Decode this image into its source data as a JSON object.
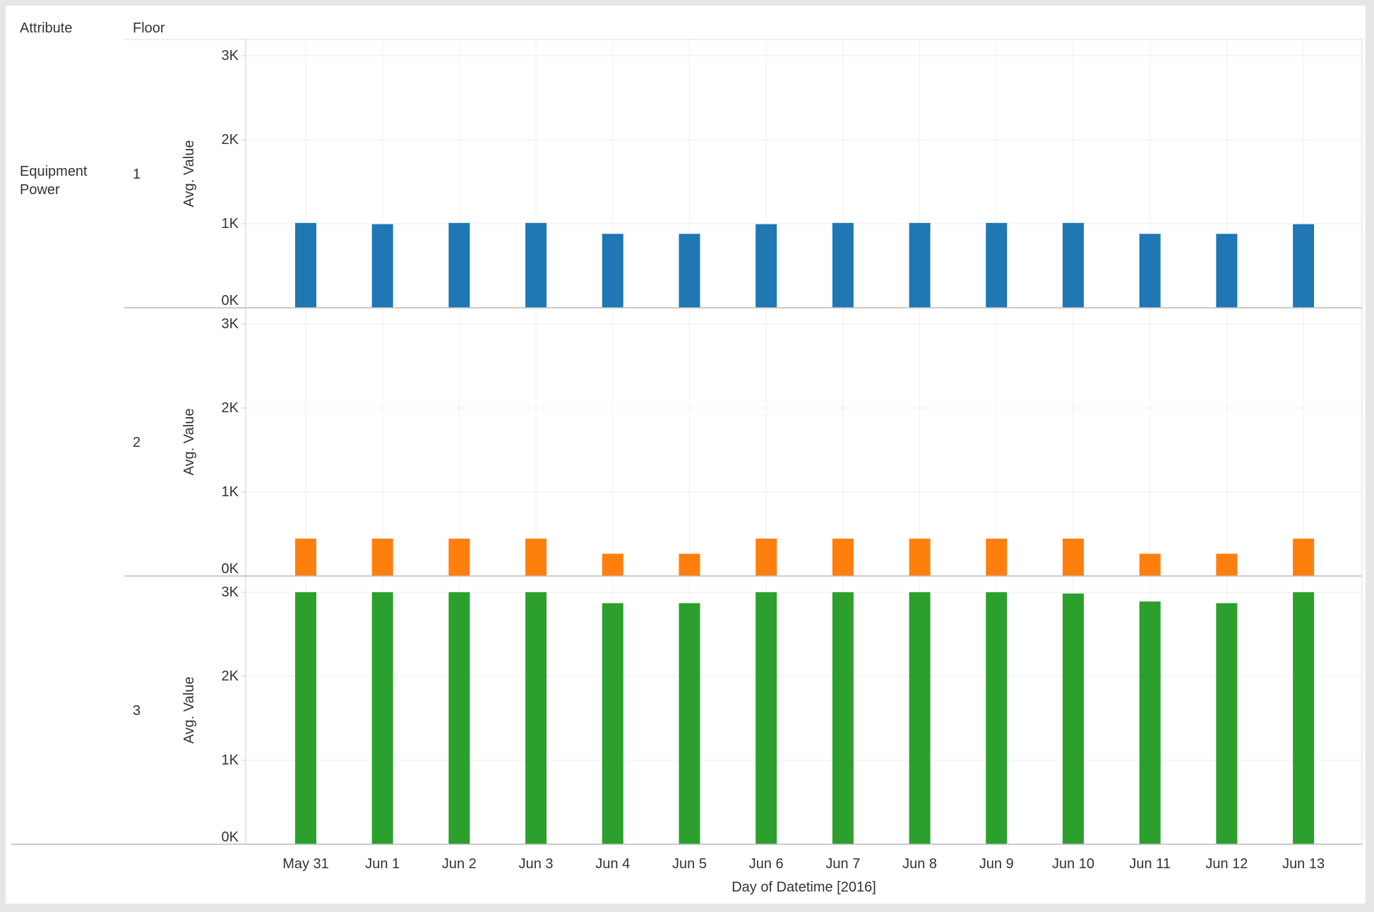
{
  "headers": {
    "attribute": "Attribute",
    "floor": "Floor"
  },
  "chart_data": {
    "type": "bar",
    "row_dimension": "Attribute",
    "row_value": "Equipment Power",
    "facet_dimension": "Floor",
    "xlabel": "Day of Datetime [2016]",
    "ylabel": "Avg. Value",
    "ylim": [
      0,
      3000
    ],
    "yticks": [
      0,
      1000,
      2000,
      3000
    ],
    "ytick_labels": [
      "0K",
      "1K",
      "2K",
      "3K"
    ],
    "grid": true,
    "categories": [
      "May 31",
      "Jun 1",
      "Jun 2",
      "Jun 3",
      "Jun 4",
      "Jun 5",
      "Jun 6",
      "Jun 7",
      "Jun 8",
      "Jun 9",
      "Jun 10",
      "Jun 11",
      "Jun 12",
      "Jun 13"
    ],
    "series": [
      {
        "facet": "1",
        "color": "#1f77b4",
        "values": [
          1010,
          995,
          1010,
          1010,
          880,
          880,
          995,
          1010,
          1010,
          1010,
          1010,
          880,
          880,
          995
        ]
      },
      {
        "facet": "2",
        "color": "#ff7f0e",
        "values": [
          445,
          445,
          445,
          445,
          265,
          265,
          445,
          445,
          445,
          445,
          445,
          265,
          265,
          445
        ]
      },
      {
        "facet": "3",
        "color": "#2ca02c",
        "values": [
          3000,
          3000,
          3000,
          3000,
          2870,
          2870,
          3000,
          3000,
          3000,
          3000,
          2985,
          2890,
          2870,
          3000
        ]
      }
    ]
  }
}
